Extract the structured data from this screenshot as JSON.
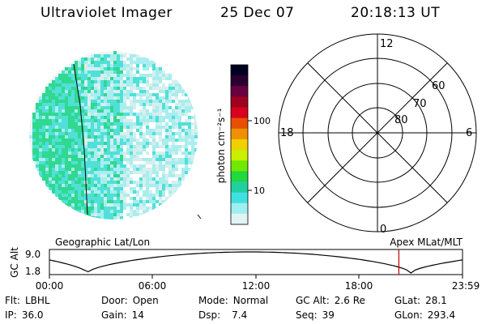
{
  "header": {
    "instrument": "Ultraviolet Imager",
    "date": "25 Dec 07",
    "time": "20:18:13 UT"
  },
  "colorbar": {
    "unit_label": "photon cm⁻²s⁻¹",
    "ticks": [
      "100",
      "10"
    ],
    "tick_values": [
      100,
      10
    ],
    "scale": "log",
    "colors_top_to_bottom": [
      "#000020",
      "#2a0030",
      "#6a0040",
      "#a00020",
      "#d8001c",
      "#e85000",
      "#f09000",
      "#f0d000",
      "#c8f000",
      "#70e800",
      "#20d840",
      "#20d0a0",
      "#40e0e0",
      "#a0eef0",
      "#e0f4f4"
    ]
  },
  "polar": {
    "mlt_labels": {
      "top": "12",
      "left": "18",
      "right": "6",
      "bottom": "0"
    },
    "lat_labels": [
      "60",
      "70",
      "80"
    ]
  },
  "timeline": {
    "left_label": "Geographic Lat/Lon",
    "right_label": "Apex MLat/MLT",
    "axis_title": "GC Alt",
    "y_ticks": [
      "9.0",
      "1.8"
    ],
    "x_ticks": [
      "00:00",
      "06:00",
      "12:00",
      "18:00",
      "23:59"
    ],
    "marker_time": "20:18",
    "marker_color": "#c00000"
  },
  "info": {
    "filter": {
      "label": "Flt:",
      "value": "LBHL"
    },
    "ip": {
      "label": "IP:",
      "value": "36.0"
    },
    "door": {
      "label": "Door:",
      "value": "Open"
    },
    "gain": {
      "label": "Gain:",
      "value": "14"
    },
    "mode": {
      "label": "Mode:",
      "value": "Normal"
    },
    "dsp": {
      "label": "Dsp:",
      "value": "7.4"
    },
    "gc_alt": {
      "label": "GC Alt:",
      "value": "2.6 Re"
    },
    "seq": {
      "label": "Seq:",
      "value": "39"
    },
    "glat": {
      "label": "GLat:",
      "value": "28.1"
    },
    "glon": {
      "label": "GLon:",
      "value": "293.4"
    }
  },
  "colors": {
    "disk_bright": "#30d890",
    "disk_mid": "#50e0d8",
    "disk_dim": "#a8eeee",
    "disk_faint": "#d8eeee"
  }
}
